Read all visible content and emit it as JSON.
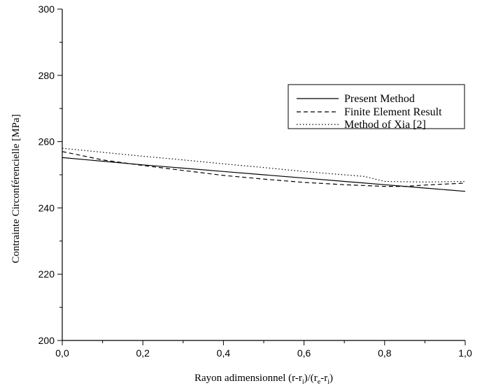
{
  "chart_data": {
    "type": "line",
    "xlabel_main": "Rayon adimensionnel (r-r",
    "xlabel_sub1": "i",
    "xlabel_mid": ")/(r",
    "xlabel_sub2": "e",
    "xlabel_dash": "-r",
    "xlabel_sub3": "i",
    "xlabel_end": ")",
    "ylabel": "Contrainte Circonférencielle [MPa]",
    "xlim": [
      0.0,
      1.0
    ],
    "ylim": [
      200,
      300
    ],
    "x_ticks": [
      "0,0",
      "0,2",
      "0,4",
      "0,6",
      "0,8",
      "1,0"
    ],
    "y_ticks": [
      "200",
      "220",
      "240",
      "260",
      "280",
      "300"
    ],
    "grid": false,
    "legend_position": "top-right",
    "series": [
      {
        "name": "Present Method",
        "style": "solid",
        "x": [
          0.0,
          0.1,
          0.2,
          0.3,
          0.4,
          0.5,
          0.6,
          0.7,
          0.8,
          0.9,
          1.0
        ],
        "y": [
          255.2,
          254.1,
          253.0,
          252.0,
          251.0,
          250.0,
          249.0,
          248.0,
          247.0,
          246.0,
          245.0
        ]
      },
      {
        "name": "Finite Element Result",
        "style": "dashed",
        "x": [
          0.0,
          0.1,
          0.2,
          0.3,
          0.4,
          0.5,
          0.6,
          0.7,
          0.8,
          0.85,
          0.9,
          1.0
        ],
        "y": [
          257.0,
          254.5,
          252.8,
          251.3,
          249.8,
          248.7,
          247.7,
          247.0,
          246.5,
          246.5,
          246.9,
          247.5
        ]
      },
      {
        "name": "Method of Xia [2]",
        "style": "dotted",
        "x": [
          0.0,
          0.1,
          0.2,
          0.3,
          0.4,
          0.5,
          0.6,
          0.7,
          0.75,
          0.8,
          0.9,
          1.0
        ],
        "y": [
          258.0,
          256.8,
          255.6,
          254.5,
          253.3,
          252.2,
          251.0,
          250.0,
          249.5,
          248.0,
          247.8,
          248.0
        ]
      }
    ]
  }
}
